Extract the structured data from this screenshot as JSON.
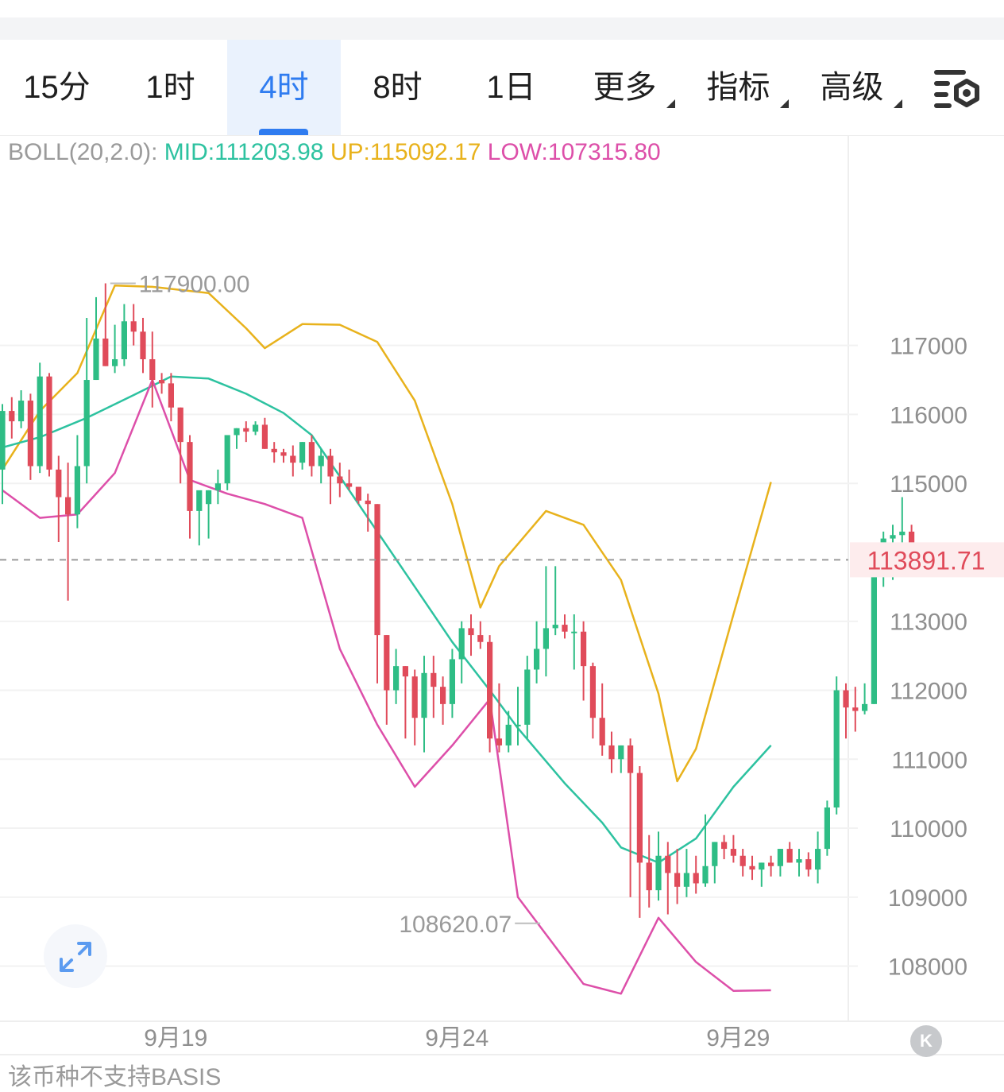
{
  "tabs": [
    {
      "label": "15分",
      "active": false,
      "dropdown": false
    },
    {
      "label": "1时",
      "active": false,
      "dropdown": false
    },
    {
      "label": "4时",
      "active": true,
      "dropdown": false
    },
    {
      "label": "8时",
      "active": false,
      "dropdown": false
    },
    {
      "label": "1日",
      "active": false,
      "dropdown": false
    },
    {
      "label": "更多",
      "active": false,
      "dropdown": true
    },
    {
      "label": "指标",
      "active": false,
      "dropdown": true
    },
    {
      "label": "高级",
      "active": false,
      "dropdown": true
    }
  ],
  "settings_icon": "chart-settings-icon",
  "indicator": {
    "label": "BOLL(20,2.0):",
    "mid": "MID:111203.98",
    "up": "UP:115092.17",
    "low": "LOW:107315.80"
  },
  "footer": {
    "note": "该币种不支持BASIS",
    "k_label": "K"
  },
  "colors": {
    "accent": "#2f7cf0",
    "up_candle": "#2ebd85",
    "down_candle": "#e04b5a",
    "mid_line": "#2dc2a0",
    "upper_line": "#e8b21c",
    "lower_line": "#dd4fa9",
    "price_tag_text": "#e04b5a",
    "price_tag_bg": "#fdeced"
  },
  "chart_data": {
    "type": "candlestick",
    "timeframe": "4时",
    "y_ticks": [
      117000,
      116000,
      115000,
      113000,
      112000,
      111000,
      110000,
      109000,
      108000
    ],
    "ylim": [
      107200,
      120050
    ],
    "x_tick_labels": [
      {
        "label": "9月19",
        "index": 18.5
      },
      {
        "label": "9月24",
        "index": 48.5
      },
      {
        "label": "9月29",
        "index": 78.5
      }
    ],
    "current_price": 113891.71,
    "current_price_label": "113891.71",
    "high_marker": {
      "value": 117900.0,
      "label": "117900.00",
      "index": 11
    },
    "low_marker": {
      "value": 108620.07,
      "label": "108620.07",
      "index": 54
    },
    "candles": [
      [
        115200,
        116150,
        114700,
        116050
      ],
      [
        116050,
        116250,
        115650,
        115900
      ],
      [
        115900,
        116350,
        115800,
        116200
      ],
      [
        116200,
        116300,
        115050,
        115250
      ],
      [
        115250,
        116750,
        115150,
        116550
      ],
      [
        116550,
        116600,
        115100,
        115200
      ],
      [
        115200,
        115400,
        114150,
        114800
      ],
      [
        114800,
        115300,
        113300,
        114550
      ],
      [
        114550,
        115700,
        114350,
        115250
      ],
      [
        115250,
        117400,
        115000,
        116500
      ],
      [
        116500,
        117700,
        116500,
        117100
      ],
      [
        117100,
        117900,
        116700,
        116700
      ],
      [
        116700,
        117300,
        116600,
        116800
      ],
      [
        116800,
        117600,
        116700,
        117350
      ],
      [
        117350,
        117600,
        117000,
        117200
      ],
      [
        117200,
        117400,
        116600,
        116800
      ],
      [
        116800,
        117200,
        116100,
        116500
      ],
      [
        116500,
        116600,
        116300,
        116450
      ],
      [
        116450,
        116600,
        115900,
        116100
      ],
      [
        116100,
        116100,
        115000,
        115600
      ],
      [
        115600,
        115700,
        114200,
        114600
      ],
      [
        114600,
        114800,
        114100,
        114900
      ],
      [
        114700,
        114900,
        114200,
        114900
      ],
      [
        114900,
        115200,
        114700,
        115000
      ],
      [
        115000,
        115700,
        114900,
        115700
      ],
      [
        115700,
        115800,
        115500,
        115800
      ],
      [
        115800,
        115900,
        115600,
        115750
      ],
      [
        115750,
        115900,
        115700,
        115850
      ],
      [
        115850,
        115950,
        115500,
        115500
      ],
      [
        115500,
        115600,
        115300,
        115450
      ],
      [
        115450,
        115500,
        115300,
        115400
      ],
      [
        115400,
        115550,
        115100,
        115300
      ],
      [
        115300,
        115600,
        115200,
        115600
      ],
      [
        115600,
        115700,
        115100,
        115250
      ],
      [
        115250,
        115500,
        115000,
        115400
      ],
      [
        115400,
        115500,
        114700,
        115100
      ],
      [
        115100,
        115300,
        114800,
        115000
      ],
      [
        115000,
        115200,
        114900,
        114950
      ],
      [
        114950,
        114950,
        114700,
        114750
      ],
      [
        114750,
        114850,
        114300,
        114700
      ],
      [
        114700,
        114700,
        112100,
        112800
      ],
      [
        112800,
        112800,
        111500,
        112000
      ],
      [
        112000,
        112600,
        111800,
        112350
      ],
      [
        112350,
        112350,
        111300,
        112200
      ],
      [
        112200,
        112300,
        111200,
        111600
      ],
      [
        111600,
        112500,
        111100,
        112250
      ],
      [
        112250,
        112500,
        111600,
        112050
      ],
      [
        112050,
        112200,
        111500,
        111800
      ],
      [
        111800,
        112600,
        111600,
        112450
      ],
      [
        112450,
        113000,
        112100,
        112900
      ],
      [
        112900,
        113100,
        112500,
        112800
      ],
      [
        112800,
        113000,
        112600,
        112700
      ],
      [
        112700,
        112800,
        111100,
        111300
      ],
      [
        111300,
        112100,
        111100,
        111200
      ],
      [
        111200,
        111700,
        111100,
        111500
      ],
      [
        111500,
        112050,
        111200,
        111500
      ],
      [
        111500,
        112500,
        111300,
        112300
      ],
      [
        112300,
        113000,
        112100,
        112600
      ],
      [
        112600,
        113800,
        112200,
        112900
      ],
      [
        112900,
        113800,
        112800,
        112950
      ],
      [
        112950,
        113100,
        112750,
        112850
      ],
      [
        112850,
        113100,
        112300,
        112850
      ],
      [
        112850,
        113000,
        111850,
        112350
      ],
      [
        112350,
        112400,
        111300,
        111600
      ],
      [
        111600,
        112100,
        111050,
        111200
      ],
      [
        111200,
        111400,
        110800,
        111000
      ],
      [
        111000,
        111200,
        110800,
        111200
      ],
      [
        111200,
        111300,
        109000,
        110800
      ],
      [
        110800,
        110900,
        108700,
        109500
      ],
      [
        109500,
        109900,
        108850,
        109100
      ],
      [
        109100,
        109950,
        108950,
        109600
      ],
      [
        109600,
        109800,
        108750,
        109350
      ],
      [
        109350,
        109700,
        108900,
        109150
      ],
      [
        109150,
        109700,
        109000,
        109350
      ],
      [
        109350,
        109600,
        109050,
        109200
      ],
      [
        109200,
        110200,
        109150,
        109450
      ],
      [
        109450,
        109800,
        109200,
        109800
      ],
      [
        109800,
        109900,
        109550,
        109700
      ],
      [
        109700,
        109900,
        109500,
        109600
      ],
      [
        109600,
        109700,
        109300,
        109450
      ],
      [
        109450,
        109600,
        109250,
        109400
      ],
      [
        109400,
        109500,
        109150,
        109500
      ],
      [
        109500,
        109600,
        109300,
        109450
      ],
      [
        109450,
        109700,
        109300,
        109700
      ],
      [
        109700,
        109800,
        109500,
        109500
      ],
      [
        109500,
        109700,
        109300,
        109550
      ],
      [
        109550,
        109650,
        109300,
        109400
      ],
      [
        109400,
        109950,
        109200,
        109700
      ],
      [
        109700,
        110400,
        109600,
        110300
      ],
      [
        110300,
        112200,
        110200,
        112000
      ],
      [
        112000,
        112100,
        111300,
        111750
      ],
      [
        111750,
        112050,
        111400,
        111700
      ],
      [
        111700,
        112100,
        111650,
        111800
      ],
      [
        111800,
        113900,
        111800,
        113800
      ],
      [
        113800,
        114300,
        113500,
        114200
      ],
      [
        114200,
        114400,
        113600,
        114250
      ],
      [
        114250,
        114800,
        114000,
        114300
      ],
      [
        114300,
        114400,
        113900,
        113892
      ]
    ],
    "boll_mid": [
      [
        0,
        115520
      ],
      [
        4,
        115670
      ],
      [
        9,
        115950
      ],
      [
        14,
        116280
      ],
      [
        18,
        116550
      ],
      [
        22,
        116520
      ],
      [
        26,
        116300
      ],
      [
        30,
        116020
      ],
      [
        33,
        115700
      ],
      [
        36,
        115100
      ],
      [
        40,
        114300
      ],
      [
        44,
        113500
      ],
      [
        48,
        112700
      ],
      [
        52,
        112000
      ],
      [
        55,
        111450
      ],
      [
        60,
        110650
      ],
      [
        64,
        110080
      ],
      [
        66,
        109720
      ],
      [
        70,
        109500
      ],
      [
        74,
        109850
      ],
      [
        78,
        110600
      ],
      [
        82,
        111200
      ]
    ],
    "boll_upper": [
      [
        0,
        115200
      ],
      [
        4,
        116050
      ],
      [
        8,
        116600
      ],
      [
        12,
        117870
      ],
      [
        16,
        117850
      ],
      [
        22,
        117760
      ],
      [
        26,
        117250
      ],
      [
        28,
        116960
      ],
      [
        32,
        117310
      ],
      [
        36,
        117300
      ],
      [
        40,
        117050
      ],
      [
        44,
        116200
      ],
      [
        48,
        114700
      ],
      [
        51,
        113200
      ],
      [
        53,
        113800
      ],
      [
        58,
        114600
      ],
      [
        62,
        114400
      ],
      [
        66,
        113600
      ],
      [
        70,
        111950
      ],
      [
        72,
        110680
      ],
      [
        74,
        111150
      ],
      [
        78,
        113100
      ],
      [
        82,
        115020
      ]
    ],
    "boll_lower": [
      [
        0,
        114900
      ],
      [
        4,
        114500
      ],
      [
        8,
        114550
      ],
      [
        12,
        115150
      ],
      [
        16,
        116500
      ],
      [
        20,
        115050
      ],
      [
        24,
        114850
      ],
      [
        28,
        114700
      ],
      [
        32,
        114500
      ],
      [
        36,
        112600
      ],
      [
        40,
        111500
      ],
      [
        44,
        110600
      ],
      [
        48,
        111200
      ],
      [
        52,
        111870
      ],
      [
        55,
        109000
      ],
      [
        62,
        107740
      ],
      [
        66,
        107600
      ],
      [
        70,
        108700
      ],
      [
        74,
        108060
      ],
      [
        78,
        107640
      ],
      [
        82,
        107650
      ]
    ]
  }
}
